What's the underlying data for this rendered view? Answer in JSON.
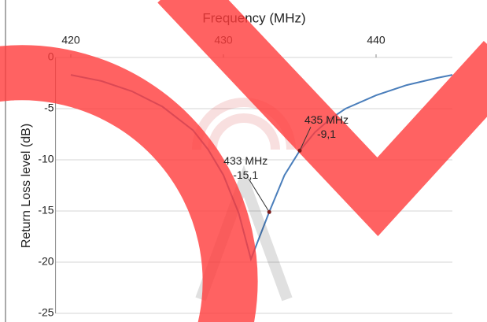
{
  "chart_data": {
    "type": "line",
    "x_label": "Frequency (MHz)",
    "y_label": "Return Loss level (dB)",
    "x": [
      420,
      422,
      424,
      426,
      428,
      429,
      430,
      431,
      431.8,
      433,
      434,
      435,
      436,
      437,
      438,
      440,
      442,
      444,
      445
    ],
    "values": [
      -1.7,
      -2.3,
      -3.3,
      -4.8,
      -7.1,
      -9,
      -11.5,
      -15.2,
      -19.7,
      -15.1,
      -11.5,
      -9.1,
      -7.3,
      -6,
      -5,
      -3.7,
      -2.7,
      -2,
      -1.7
    ],
    "color": "#4a7ebb",
    "xlim": [
      419,
      445
    ],
    "xticks": [
      420,
      430,
      440
    ],
    "ylim": [
      -25,
      0
    ],
    "yticks": [
      0,
      -5,
      -10,
      -15,
      -20,
      -25
    ],
    "grid": true,
    "annotations": [
      {
        "x": 433,
        "y": -15.1,
        "label": "433 MHz",
        "value_label": "-15,1"
      },
      {
        "x": 435,
        "y": -9.1,
        "label": "435 MHz",
        "value_label": "-9,1"
      }
    ]
  }
}
